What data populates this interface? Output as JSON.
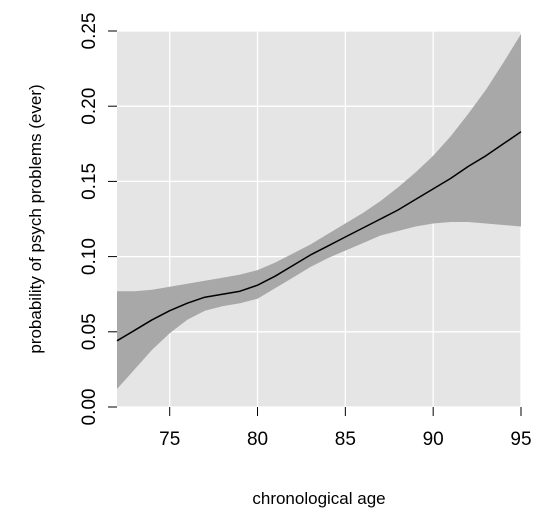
{
  "chart_data": {
    "type": "line",
    "title": "",
    "xlabel": "chronological age",
    "ylabel": "probability of psych problems (ever)",
    "xlim": [
      72,
      95
    ],
    "ylim": [
      0,
      0.25
    ],
    "grid": true,
    "colors": {
      "panel_background": "#e5e5e5",
      "grid": "#ffffff",
      "band": "#a8a8a8",
      "line": "#000000"
    },
    "x_ticks": [
      75,
      80,
      85,
      90,
      95
    ],
    "x_tick_labels": [
      "75",
      "80",
      "85",
      "90",
      "95"
    ],
    "y_ticks": [
      0,
      0.05,
      0.1,
      0.15,
      0.2,
      0.25
    ],
    "y_tick_labels": [
      "0.00",
      "0.05",
      "0.10",
      "0.15",
      "0.20",
      "0.25"
    ],
    "series": [
      {
        "x": [
          72,
          73,
          74,
          75,
          76,
          77,
          78,
          79,
          80,
          81,
          82,
          83,
          84,
          85,
          86,
          87,
          88,
          89,
          90,
          91,
          92,
          93,
          94,
          95
        ],
        "y": [
          0.044,
          0.051,
          0.058,
          0.064,
          0.069,
          0.073,
          0.075,
          0.077,
          0.081,
          0.087,
          0.094,
          0.101,
          0.107,
          0.113,
          0.119,
          0.125,
          0.131,
          0.138,
          0.145,
          0.152,
          0.16,
          0.167,
          0.175,
          0.183
        ],
        "lower": [
          0.012,
          0.025,
          0.038,
          0.049,
          0.058,
          0.064,
          0.067,
          0.069,
          0.072,
          0.079,
          0.086,
          0.093,
          0.099,
          0.104,
          0.109,
          0.114,
          0.117,
          0.12,
          0.122,
          0.123,
          0.123,
          0.122,
          0.121,
          0.12
        ],
        "upper": [
          0.077,
          0.077,
          0.078,
          0.08,
          0.082,
          0.084,
          0.086,
          0.088,
          0.091,
          0.096,
          0.102,
          0.108,
          0.115,
          0.122,
          0.129,
          0.137,
          0.146,
          0.156,
          0.167,
          0.18,
          0.195,
          0.211,
          0.229,
          0.248
        ]
      }
    ]
  }
}
